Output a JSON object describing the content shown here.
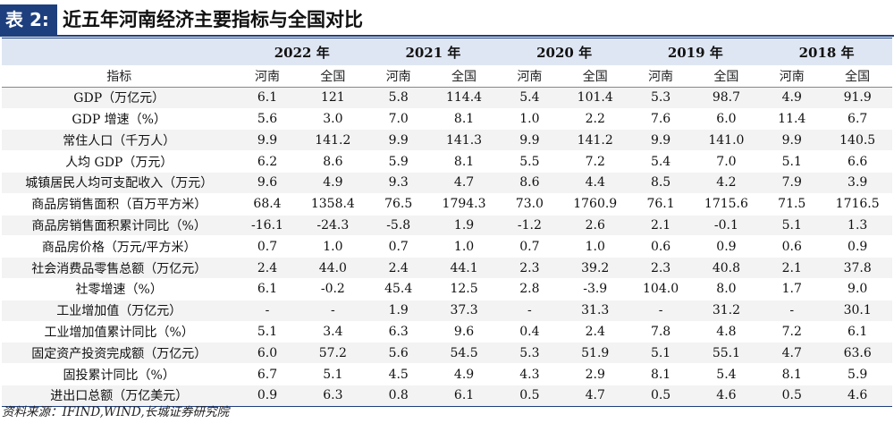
{
  "title": {
    "tag": "表 2:",
    "text": "近五年河南经济主要指标与全国对比"
  },
  "table": {
    "years": [
      "2022 年",
      "2021 年",
      "2020 年",
      "2019 年",
      "2018 年"
    ],
    "indicator_header": "指标",
    "sub_headers": [
      "河南",
      "全国"
    ],
    "rows": [
      {
        "label": "GDP（万亿元）",
        "values": [
          "6.1",
          "121",
          "5.8",
          "114.4",
          "5.4",
          "101.4",
          "5.3",
          "98.7",
          "4.9",
          "91.9"
        ]
      },
      {
        "label": "GDP 增速（%）",
        "values": [
          "5.6",
          "3.0",
          "7.0",
          "8.1",
          "1.0",
          "2.2",
          "7.6",
          "6.0",
          "11.4",
          "6.7"
        ]
      },
      {
        "label": "常住人口（千万人）",
        "values": [
          "9.9",
          "141.2",
          "9.9",
          "141.3",
          "9.9",
          "141.2",
          "9.9",
          "141.0",
          "9.9",
          "140.5"
        ]
      },
      {
        "label": "人均 GDP（万元）",
        "values": [
          "6.2",
          "8.6",
          "5.9",
          "8.1",
          "5.5",
          "7.2",
          "5.4",
          "7.0",
          "5.1",
          "6.6"
        ]
      },
      {
        "label": "城镇居民人均可支配收入（万元）",
        "values": [
          "9.6",
          "4.9",
          "9.3",
          "4.7",
          "8.6",
          "4.4",
          "8.5",
          "4.2",
          "7.9",
          "3.9"
        ]
      },
      {
        "label": "商品房销售面积（百万平方米）",
        "values": [
          "68.4",
          "1358.4",
          "76.5",
          "1794.3",
          "73.0",
          "1760.9",
          "76.1",
          "1715.6",
          "71.5",
          "1716.5"
        ]
      },
      {
        "label": "商品房销售面积累计同比（%）",
        "values": [
          "-16.1",
          "-24.3",
          "-5.8",
          "1.9",
          "-1.2",
          "2.6",
          "2.1",
          "-0.1",
          "5.1",
          "1.3"
        ]
      },
      {
        "label": "商品房价格（万元/平方米）",
        "values": [
          "0.7",
          "1.0",
          "0.7",
          "1.0",
          "0.7",
          "1.0",
          "0.6",
          "0.9",
          "0.6",
          "0.9"
        ]
      },
      {
        "label": "社会消费品零售总额（万亿元）",
        "values": [
          "2.4",
          "44.0",
          "2.4",
          "44.1",
          "2.3",
          "39.2",
          "2.3",
          "40.8",
          "2.1",
          "37.8"
        ]
      },
      {
        "label": "社零增速（%）",
        "values": [
          "6.1",
          "-0.2",
          "45.4",
          "12.5",
          "2.8",
          "-3.9",
          "104.0",
          "8.0",
          "1.7",
          "9.0"
        ]
      },
      {
        "label": "工业增加值（万亿元）",
        "values": [
          "-",
          "-",
          "1.9",
          "37.3",
          "-",
          "31.3",
          "-",
          "31.2",
          "-",
          "30.1"
        ]
      },
      {
        "label": "工业增加值累计同比（%）",
        "values": [
          "5.1",
          "3.4",
          "6.3",
          "9.6",
          "0.4",
          "2.4",
          "7.8",
          "4.8",
          "7.2",
          "6.1"
        ]
      },
      {
        "label": "固定资产投资完成额（万亿元）",
        "values": [
          "6.0",
          "57.2",
          "5.6",
          "54.5",
          "5.3",
          "51.9",
          "5.1",
          "55.1",
          "4.7",
          "63.6"
        ]
      },
      {
        "label": "固投累计同比（%）",
        "values": [
          "6.7",
          "5.1",
          "4.5",
          "4.9",
          "4.3",
          "2.9",
          "8.1",
          "5.4",
          "8.1",
          "5.9"
        ]
      },
      {
        "label": "进出口总额（万亿美元）",
        "values": [
          "0.9",
          "6.3",
          "0.8",
          "6.1",
          "0.5",
          "4.7",
          "0.5",
          "4.6",
          "0.5",
          "4.6"
        ]
      }
    ]
  },
  "source": "资料来源：IFIND,WIND,长城证券研究院"
}
